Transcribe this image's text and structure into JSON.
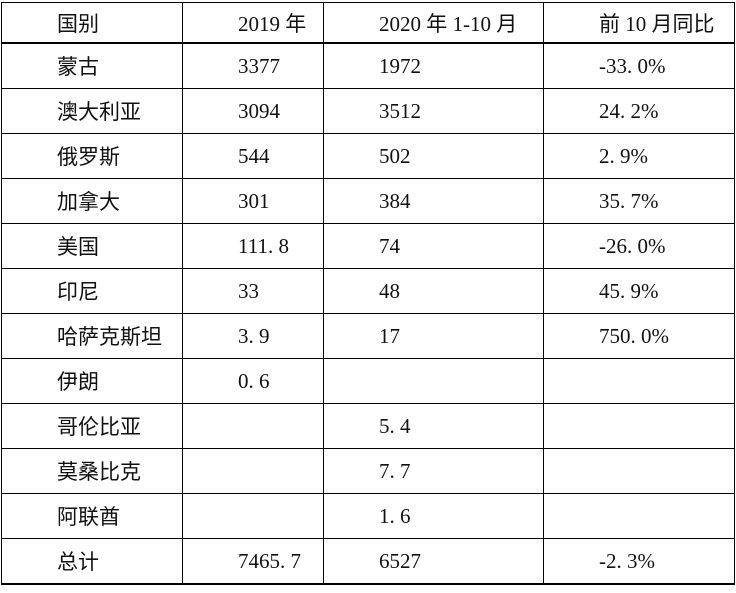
{
  "table": {
    "columns": [
      "国别",
      "2019 年",
      "2020 年 1-10 月",
      "前 10 月同比"
    ],
    "rows": [
      [
        "蒙古",
        "3377",
        "1972",
        "-33. 0%"
      ],
      [
        "澳大利亚",
        "3094",
        "3512",
        "24. 2%"
      ],
      [
        "俄罗斯",
        "544",
        "502",
        "2. 9%"
      ],
      [
        "加拿大",
        "301",
        "384",
        "35. 7%"
      ],
      [
        "美国",
        "111. 8",
        "74",
        "-26. 0%"
      ],
      [
        "印尼",
        "33",
        "48",
        "45. 9%"
      ],
      [
        "哈萨克斯坦",
        "3. 9",
        "17",
        "750. 0%"
      ],
      [
        "伊朗",
        "0. 6",
        "",
        ""
      ],
      [
        "哥伦比亚",
        "",
        "5. 4",
        ""
      ],
      [
        "莫桑比克",
        "",
        "7. 7",
        ""
      ],
      [
        "阿联酋",
        "",
        "1. 6",
        ""
      ],
      [
        "总计",
        "7465. 7",
        "6527",
        "-2. 3%"
      ]
    ],
    "colors": {
      "border": "#000000",
      "text": "#111111",
      "background": "#ffffff"
    }
  }
}
